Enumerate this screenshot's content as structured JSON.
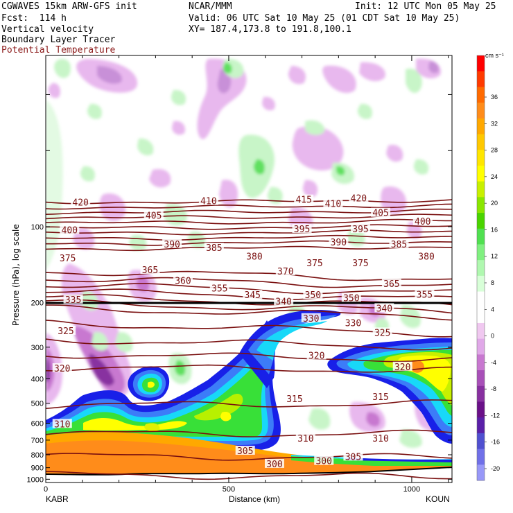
{
  "header": {
    "model": "CGWAVES 15km ARW-GFS init",
    "center": "NCAR/MMM",
    "init": "Init: 12 UTC Mon 05 May 25",
    "fcst": "Fcst:  114 h",
    "valid": "Valid: 06 UTC Sat 10 May 25 (01 CDT Sat 10 May 25)",
    "var1": "Vertical velocity",
    "xy": "XY= 187.4,173.8 to 191.8,100.1",
    "var2": "Boundary Layer Tracer",
    "var3": "Potential Temperature",
    "var3_color": "#8b1a1a"
  },
  "chart_data": {
    "type": "heatmap",
    "title": "Vertical velocity / Boundary Layer Tracer / Potential Temperature cross-section",
    "xlabel": "Distance (km)",
    "ylabel": "Pressure (hPa), log scale",
    "xlim": [
      0,
      1110
    ],
    "ylim": [
      1030,
      21
    ],
    "x_ticks": [
      0,
      500,
      1000
    ],
    "y_ticks": [
      100,
      200,
      300,
      400,
      500,
      600,
      700,
      800,
      900,
      1000
    ],
    "endpoints": {
      "left": "KABR",
      "right": "KOUN"
    },
    "colorbar": {
      "unit": "cm s⁻¹",
      "labels": [
        36,
        32,
        28,
        24,
        20,
        16,
        12,
        8,
        4,
        0,
        -4,
        -8,
        -12,
        -16,
        -20
      ],
      "colors": [
        "#ff0000",
        "#ff3a00",
        "#ff6a00",
        "#ff8c1a",
        "#ffa800",
        "#ffc800",
        "#ffe600",
        "#ffff00",
        "#c8f000",
        "#8ae600",
        "#4ad400",
        "#50e050",
        "#80f080",
        "#b0f8b0",
        "#d8ffd8",
        "#ffffff",
        "#ffffff",
        "#f0c8f0",
        "#e0a8e8",
        "#c878d0",
        "#a850b8",
        "#8830a0",
        "#6a1088",
        "#5a20a8",
        "#5050d0",
        "#7070e8",
        "#9898f8"
      ]
    },
    "theta_labels": [
      {
        "v": 420,
        "x": 95,
        "p": 80
      },
      {
        "v": 410,
        "x": 445,
        "p": 79
      },
      {
        "v": 415,
        "x": 705,
        "p": 78
      },
      {
        "v": 410,
        "x": 785,
        "p": 81
      },
      {
        "v": 420,
        "x": 855,
        "p": 77
      },
      {
        "v": 405,
        "x": 295,
        "p": 90
      },
      {
        "v": 405,
        "x": 915,
        "p": 88
      },
      {
        "v": 400,
        "x": 65,
        "p": 103
      },
      {
        "v": 400,
        "x": 1030,
        "p": 95
      },
      {
        "v": 395,
        "x": 700,
        "p": 102
      },
      {
        "v": 390,
        "x": 800,
        "p": 115
      },
      {
        "v": 395,
        "x": 860,
        "p": 102
      },
      {
        "v": 390,
        "x": 345,
        "p": 117
      },
      {
        "v": 385,
        "x": 460,
        "p": 121
      },
      {
        "v": 385,
        "x": 965,
        "p": 117
      },
      {
        "v": 380,
        "x": 570,
        "p": 131
      },
      {
        "v": 380,
        "x": 1040,
        "p": 131
      },
      {
        "v": 375,
        "x": 60,
        "p": 133
      },
      {
        "v": 375,
        "x": 735,
        "p": 139
      },
      {
        "v": 375,
        "x": 860,
        "p": 139
      },
      {
        "v": 370,
        "x": 655,
        "p": 150
      },
      {
        "v": 365,
        "x": 285,
        "p": 148
      },
      {
        "v": 360,
        "x": 375,
        "p": 163
      },
      {
        "v": 355,
        "x": 475,
        "p": 175
      },
      {
        "v": 365,
        "x": 945,
        "p": 168
      },
      {
        "v": 355,
        "x": 1035,
        "p": 185
      },
      {
        "v": 345,
        "x": 565,
        "p": 186
      },
      {
        "v": 350,
        "x": 730,
        "p": 186
      },
      {
        "v": 350,
        "x": 835,
        "p": 191
      },
      {
        "v": 340,
        "x": 650,
        "p": 197
      },
      {
        "v": 340,
        "x": 925,
        "p": 210
      },
      {
        "v": 335,
        "x": 75,
        "p": 194
      },
      {
        "v": 330,
        "x": 725,
        "p": 230
      },
      {
        "v": 330,
        "x": 840,
        "p": 240
      },
      {
        "v": 325,
        "x": 55,
        "p": 258
      },
      {
        "v": 325,
        "x": 920,
        "p": 262
      },
      {
        "v": 320,
        "x": 740,
        "p": 323
      },
      {
        "v": 320,
        "x": 975,
        "p": 358
      },
      {
        "v": 320,
        "x": 45,
        "p": 363
      },
      {
        "v": 315,
        "x": 680,
        "p": 480
      },
      {
        "v": 315,
        "x": 915,
        "p": 470
      },
      {
        "v": 310,
        "x": 45,
        "p": 603
      },
      {
        "v": 310,
        "x": 710,
        "p": 688
      },
      {
        "v": 310,
        "x": 915,
        "p": 688
      },
      {
        "v": 305,
        "x": 545,
        "p": 770
      },
      {
        "v": 305,
        "x": 840,
        "p": 812
      },
      {
        "v": 300,
        "x": 625,
        "p": 868
      },
      {
        "v": 300,
        "x": 760,
        "p": 845
      }
    ]
  }
}
